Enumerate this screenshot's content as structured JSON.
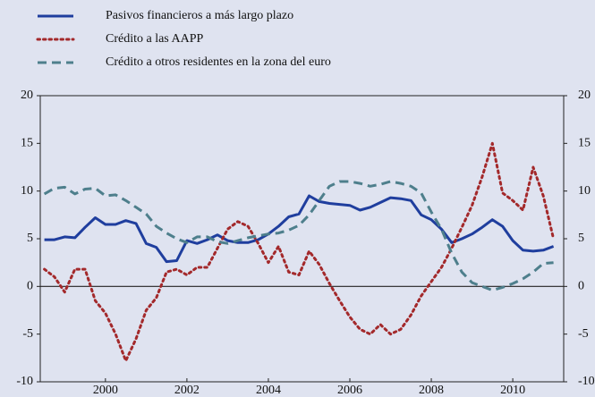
{
  "chart_data": {
    "type": "line",
    "x": [
      1998.5,
      1998.75,
      1999,
      1999.25,
      1999.5,
      1999.75,
      2000,
      2000.25,
      2000.5,
      2000.75,
      2001,
      2001.25,
      2001.5,
      2001.75,
      2002,
      2002.25,
      2002.5,
      2002.75,
      2003,
      2003.25,
      2003.5,
      2003.75,
      2004,
      2004.25,
      2004.5,
      2004.75,
      2005,
      2005.25,
      2005.5,
      2005.75,
      2006,
      2006.25,
      2006.5,
      2006.75,
      2007,
      2007.25,
      2007.5,
      2007.75,
      2008,
      2008.25,
      2008.5,
      2008.75,
      2009,
      2009.25,
      2009.5,
      2009.75,
      2010,
      2010.25,
      2010.5,
      2010.75,
      2011
    ],
    "series": [
      {
        "name": "Pasivos financieros a más largo plazo",
        "color": "#1f3e9e",
        "style": "solid",
        "values": [
          4.9,
          4.9,
          5.2,
          5.1,
          6.2,
          7.2,
          6.5,
          6.5,
          6.9,
          6.6,
          4.5,
          4.1,
          2.6,
          2.7,
          4.8,
          4.5,
          4.9,
          5.4,
          4.8,
          4.6,
          4.6,
          4.9,
          5.5,
          6.3,
          7.3,
          7.6,
          9.5,
          8.9,
          8.7,
          8.6,
          8.5,
          8.0,
          8.3,
          8.8,
          9.3,
          9.2,
          9.0,
          7.5,
          7.0,
          6.0,
          4.6,
          5.0,
          5.5,
          6.2,
          7.0,
          6.3,
          4.8,
          3.8,
          3.7,
          3.8,
          4.2
        ]
      },
      {
        "name": "Crédito a las AAPP",
        "color": "#a3292b",
        "style": "dotted",
        "values": [
          1.8,
          1.0,
          -0.6,
          1.8,
          1.8,
          -1.5,
          -2.8,
          -5,
          -7.8,
          -5.5,
          -2.5,
          -1.2,
          1.5,
          1.8,
          1.2,
          2,
          2,
          4,
          6,
          6.8,
          6.3,
          4.5,
          2.5,
          4.2,
          1.5,
          1.2,
          3.7,
          2.3,
          0.3,
          -1.5,
          -3.2,
          -4.5,
          -5,
          -4,
          -5,
          -4.5,
          -3,
          -1,
          0.5,
          2,
          4,
          6.2,
          8.5,
          11.5,
          15,
          9.8,
          9,
          8,
          12.5,
          9.5,
          5
        ]
      },
      {
        "name": "Crédito a otros residentes en la zona del euro",
        "color": "#4e7f8c",
        "style": "dashed",
        "values": [
          9.7,
          10.3,
          10.4,
          9.7,
          10.2,
          10.3,
          9.5,
          9.6,
          9.0,
          8.3,
          7.6,
          6.3,
          5.6,
          5.0,
          4.6,
          5.2,
          5.2,
          4.7,
          4.5,
          4.8,
          5.1,
          5.3,
          5.5,
          5.6,
          5.9,
          6.4,
          7.5,
          9.0,
          10.5,
          11.0,
          11.0,
          10.8,
          10.5,
          10.7,
          11.0,
          10.8,
          10.5,
          9.8,
          7.8,
          6.0,
          3.5,
          1.5,
          0.4,
          0,
          -0.4,
          -0.1,
          0.3,
          0.8,
          1.5,
          2.4,
          2.5
        ]
      }
    ],
    "xlim": [
      1998.4,
      2011.25
    ],
    "xticks": [
      2000,
      2002,
      2004,
      2006,
      2008,
      2010
    ],
    "ylim": [
      -10,
      20
    ],
    "yticks": [
      -10,
      -5,
      0,
      5,
      10,
      15,
      20
    ]
  }
}
